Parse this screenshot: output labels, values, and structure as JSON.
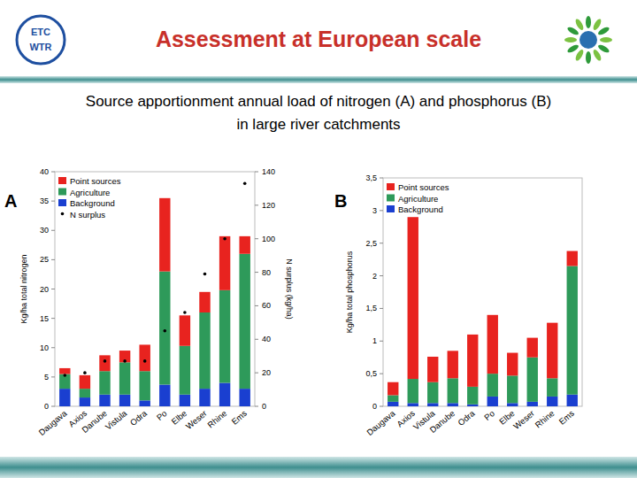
{
  "header": {
    "title": "Assessment at European scale",
    "subtitle": [
      "Source apportionment annual load of nitrogen (A) and phosphorus (B)",
      "in large river catchments"
    ]
  },
  "logo": [
    "ETC",
    "WTR"
  ],
  "panels": [
    "A",
    "B"
  ],
  "chart_data": [
    {
      "type": "bar",
      "stacked": true,
      "grid": false,
      "legend": "upper left",
      "y_label": "Kg/ha total nitrogen",
      "y2_label": "N surplus (kg/ha)",
      "categories": [
        "Daugava",
        "Axios",
        "Danube",
        "Vistula",
        "Odra",
        "Po",
        "Elbe",
        "Weser",
        "Rhine",
        "Ems"
      ],
      "series": [
        {
          "name": "Background",
          "color": "#1a3fd0",
          "values": [
            3,
            1.5,
            2,
            2,
            1,
            3.7,
            2,
            3,
            4,
            3
          ]
        },
        {
          "name": "Agriculture",
          "color": "#2e9a5a",
          "values": [
            2.5,
            1.5,
            4,
            5.5,
            5,
            19.3,
            8.3,
            13,
            15.8,
            23
          ]
        },
        {
          "name": "Point sources",
          "color": "#e8231f",
          "values": [
            1,
            2.3,
            2.7,
            2,
            4.5,
            12.5,
            5.2,
            3.5,
            9.2,
            3
          ]
        },
        {
          "name": "N surplus",
          "type": "scatter",
          "axis": "y2",
          "marker": "dot",
          "color": "#000000",
          "values": [
            18.5,
            20,
            27,
            27,
            27,
            45,
            56,
            79,
            100,
            133
          ]
        }
      ],
      "ylim": [
        0,
        40
      ],
      "yticks": [
        0,
        5,
        10,
        15,
        20,
        25,
        30,
        35,
        40
      ],
      "y2lim": [
        0,
        140
      ],
      "y2ticks": [
        0,
        20,
        40,
        60,
        80,
        100,
        120,
        140
      ]
    },
    {
      "type": "bar",
      "stacked": true,
      "grid": false,
      "legend": "upper left",
      "y_label": "Kg/ha total phosphorus",
      "categories": [
        "Daugava",
        "Axios",
        "Vistula",
        "Danube",
        "Odra",
        "Po",
        "Elbe",
        "Weser",
        "Rhine",
        "Ems"
      ],
      "series": [
        {
          "name": "Background",
          "color": "#1a3fd0",
          "values": [
            0.07,
            0.05,
            0.05,
            0.05,
            0.03,
            0.15,
            0.05,
            0.07,
            0.15,
            0.18
          ]
        },
        {
          "name": "Agriculture",
          "color": "#2e9a5a",
          "values": [
            0.1,
            0.37,
            0.32,
            0.38,
            0.27,
            0.35,
            0.42,
            0.68,
            0.28,
            1.97
          ]
        },
        {
          "name": "Point sources",
          "color": "#e8231f",
          "values": [
            0.2,
            2.48,
            0.39,
            0.42,
            0.8,
            0.9,
            0.35,
            0.3,
            0.85,
            0.23
          ]
        }
      ],
      "ylim": [
        0,
        3.5
      ],
      "yticks": [
        0,
        {
          "value": 0.5,
          "label": "0,5"
        },
        1,
        {
          "value": 1.5,
          "label": "1,5"
        },
        2,
        {
          "value": 2.5,
          "label": "2,5"
        },
        3,
        {
          "value": 3.5,
          "label": "3,5"
        }
      ]
    }
  ]
}
